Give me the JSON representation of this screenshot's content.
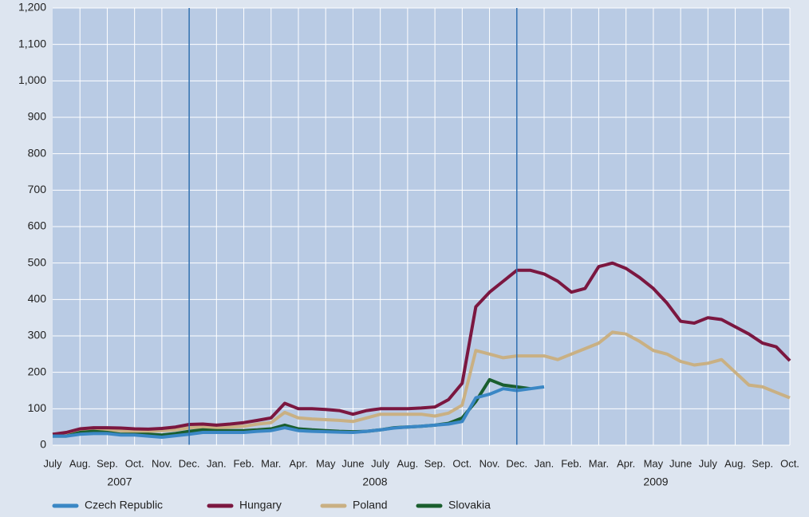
{
  "chart_data": {
    "type": "line",
    "categories": [
      "July",
      null,
      "Aug.",
      null,
      "Sep.",
      null,
      "Oct.",
      null,
      "Nov.",
      null,
      "Dec.",
      null,
      "Jan.",
      null,
      "Feb.",
      null,
      "Mar.",
      null,
      "Apr.",
      null,
      "May",
      null,
      "June",
      null,
      "July",
      null,
      "Aug.",
      null,
      "Sep.",
      null,
      "Oct.",
      null,
      "Nov.",
      null,
      "Dec.",
      null,
      "Jan.",
      null,
      "Feb.",
      null,
      "Mar.",
      null,
      "Apr.",
      null,
      "May",
      null,
      "June",
      null,
      "July",
      null,
      "Aug.",
      null,
      "Sep.",
      null,
      "Oct."
    ],
    "year_labels": [
      "2007",
      "2008",
      "2009"
    ],
    "series": [
      {
        "name": "Czech Republic",
        "color": "#3a87c5",
        "values": [
          25,
          25,
          30,
          32,
          32,
          28,
          28,
          25,
          22,
          26,
          30,
          35,
          35,
          35,
          35,
          38,
          40,
          48,
          40,
          38,
          37,
          36,
          35,
          38,
          42,
          47,
          50,
          52,
          55,
          58,
          65,
          130,
          140,
          155,
          150,
          155,
          160,
          null,
          null,
          null,
          null,
          null,
          null,
          null,
          null,
          null,
          null,
          null,
          null,
          null,
          null,
          null,
          null,
          null,
          null
        ]
      },
      {
        "name": "Hungary",
        "color": "#7b1740",
        "values": [
          30,
          35,
          45,
          48,
          48,
          47,
          45,
          44,
          46,
          50,
          57,
          58,
          55,
          58,
          62,
          68,
          75,
          115,
          100,
          100,
          98,
          95,
          85,
          95,
          100,
          100,
          100,
          102,
          105,
          125,
          170,
          380,
          420,
          450,
          480,
          480,
          470,
          450,
          420,
          430,
          490,
          500,
          485,
          460,
          430,
          390,
          340,
          335,
          350,
          345,
          325,
          305,
          280,
          270,
          232
        ]
      },
      {
        "name": "Poland",
        "color": "#c9b083",
        "values": [
          30,
          32,
          40,
          42,
          42,
          40,
          38,
          38,
          40,
          42,
          48,
          50,
          48,
          50,
          52,
          58,
          62,
          90,
          75,
          72,
          70,
          68,
          65,
          75,
          85,
          85,
          85,
          85,
          80,
          88,
          110,
          260,
          250,
          240,
          245,
          245,
          245,
          235,
          250,
          265,
          280,
          310,
          305,
          285,
          260,
          250,
          230,
          220,
          225,
          235,
          200,
          165,
          160,
          145,
          130
        ]
      },
      {
        "name": "Slovakia",
        "color": "#1a5e2e",
        "values": [
          25,
          25,
          35,
          38,
          35,
          30,
          30,
          30,
          28,
          32,
          38,
          42,
          40,
          40,
          40,
          42,
          45,
          55,
          45,
          42,
          40,
          38,
          37,
          38,
          42,
          48,
          50,
          52,
          55,
          60,
          75,
          120,
          180,
          165,
          160,
          155,
          null,
          null,
          null,
          null,
          null,
          null,
          null,
          null,
          null,
          null,
          null,
          null,
          null,
          null,
          null,
          null,
          null,
          null,
          null
        ]
      }
    ],
    "reference_lines": [
      10,
      34
    ],
    "ylim": [
      0,
      1200
    ],
    "yticks": [
      0,
      100,
      200,
      300,
      400,
      500,
      600,
      700,
      800,
      900,
      {
        "value": 1000,
        "label": "1,000"
      },
      {
        "value": 1100,
        "label": "1,100"
      },
      {
        "value": 1200,
        "label": "1,200"
      }
    ],
    "grid": true
  }
}
